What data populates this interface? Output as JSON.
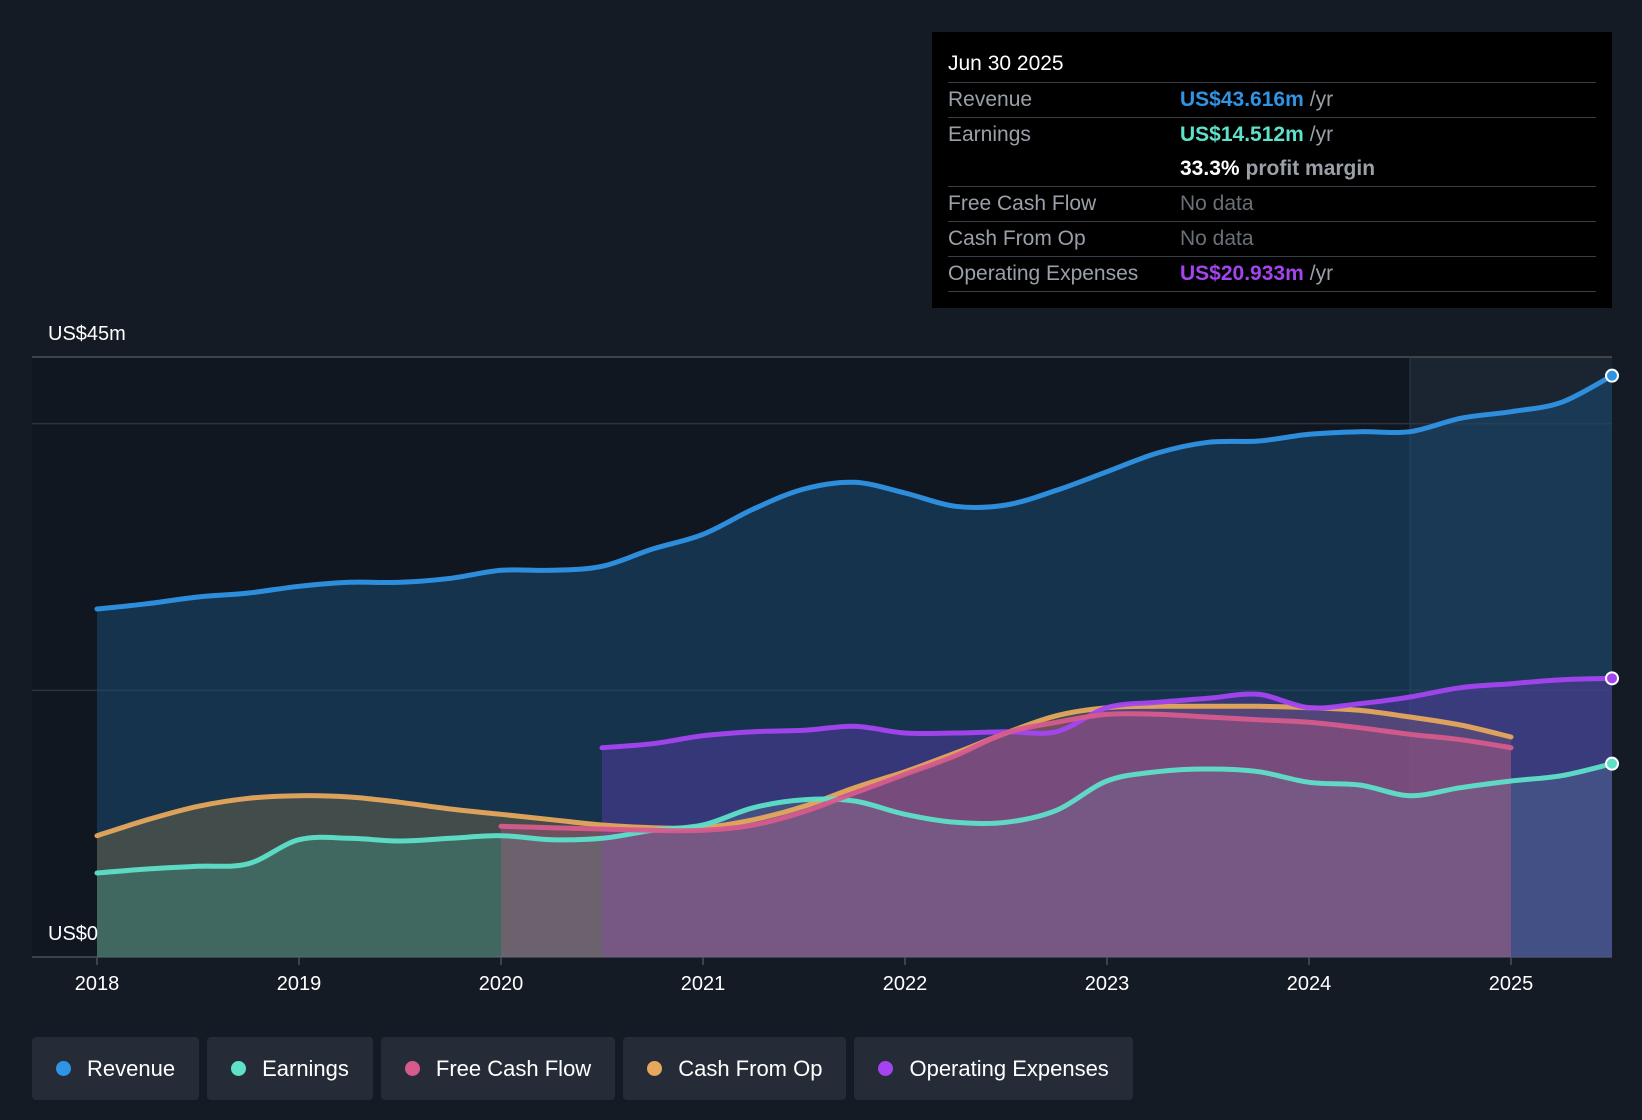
{
  "tooltip": {
    "date": "Jun 30 2025",
    "revenue": {
      "label": "Revenue",
      "value": "US$43.616m",
      "unit": "/yr"
    },
    "earnings": {
      "label": "Earnings",
      "value": "US$14.512m",
      "unit": "/yr"
    },
    "margin": {
      "value": "33.3%",
      "label": "profit margin"
    },
    "fcf": {
      "label": "Free Cash Flow",
      "value": "No data"
    },
    "cfo": {
      "label": "Cash From Op",
      "value": "No data"
    },
    "opex": {
      "label": "Operating Expenses",
      "value": "US$20.933m",
      "unit": "/yr"
    }
  },
  "colors": {
    "revenue": "#2f94e6",
    "earnings": "#5ee0c9",
    "fcf": "#d65b8d",
    "cfo": "#e6a85c",
    "opex": "#a444f0"
  },
  "legend": [
    {
      "key": "revenue",
      "label": "Revenue"
    },
    {
      "key": "earnings",
      "label": "Earnings"
    },
    {
      "key": "fcf",
      "label": "Free Cash Flow"
    },
    {
      "key": "cfo",
      "label": "Cash From Op"
    },
    {
      "key": "opex",
      "label": "Operating Expenses"
    }
  ],
  "chart_data": {
    "type": "area",
    "title": "",
    "xlabel": "",
    "ylabel": "",
    "y_max_label": "US$45m",
    "y_min_label": "US$0",
    "ylim": [
      0,
      45
    ],
    "xlim": [
      2017.68,
      2025.5
    ],
    "x_ticks": [
      2018,
      2019,
      2020,
      2021,
      2022,
      2023,
      2024,
      2025
    ],
    "x_tick_labels": [
      "2018",
      "2019",
      "2020",
      "2021",
      "2022",
      "2023",
      "2024",
      "2025"
    ],
    "gridlines": [
      20,
      40
    ],
    "highlight_from": 2024.5,
    "series": [
      {
        "key": "revenue",
        "name": "Revenue",
        "x": [
          2018,
          2018.25,
          2018.5,
          2018.75,
          2019,
          2019.25,
          2019.5,
          2019.75,
          2020,
          2020.25,
          2020.5,
          2020.75,
          2021,
          2021.25,
          2021.5,
          2021.75,
          2022,
          2022.25,
          2022.5,
          2022.75,
          2023,
          2023.25,
          2023.5,
          2023.75,
          2024,
          2024.25,
          2024.5,
          2024.75,
          2025,
          2025.25,
          2025.5
        ],
        "y": [
          26.1,
          26.5,
          27.0,
          27.3,
          27.8,
          28.1,
          28.1,
          28.4,
          29.0,
          29.0,
          29.3,
          30.6,
          31.7,
          33.6,
          35.1,
          35.6,
          34.8,
          33.8,
          33.9,
          35.0,
          36.4,
          37.8,
          38.6,
          38.7,
          39.2,
          39.4,
          39.4,
          40.4,
          40.9,
          41.6,
          43.6
        ]
      },
      {
        "key": "earnings",
        "name": "Earnings",
        "x": [
          2018,
          2018.25,
          2018.5,
          2018.75,
          2019,
          2019.25,
          2019.5,
          2019.75,
          2020,
          2020.25,
          2020.5,
          2020.75,
          2021,
          2021.25,
          2021.5,
          2021.75,
          2022,
          2022.25,
          2022.5,
          2022.75,
          2023,
          2023.25,
          2023.5,
          2023.75,
          2024,
          2024.25,
          2024.5,
          2024.75,
          2025,
          2025.25,
          2025.5
        ],
        "y": [
          6.3,
          6.6,
          6.8,
          7.0,
          8.8,
          8.9,
          8.7,
          8.9,
          9.1,
          8.8,
          8.9,
          9.5,
          9.9,
          11.2,
          11.8,
          11.7,
          10.7,
          10.1,
          10.1,
          11.0,
          13.2,
          13.9,
          14.1,
          13.9,
          13.1,
          12.9,
          12.1,
          12.7,
          13.2,
          13.6,
          14.5
        ]
      },
      {
        "key": "fcf",
        "name": "Free Cash Flow",
        "x": [
          2020,
          2020.25,
          2020.5,
          2020.75,
          2021,
          2021.25,
          2021.5,
          2021.75,
          2022,
          2022.25,
          2022.5,
          2022.75,
          2023,
          2023.25,
          2023.5,
          2023.75,
          2024,
          2024.25,
          2024.5,
          2024.75,
          2025
        ],
        "y": [
          9.8,
          9.7,
          9.6,
          9.5,
          9.5,
          9.9,
          10.9,
          12.3,
          13.7,
          15.1,
          16.8,
          17.6,
          18.2,
          18.2,
          18.0,
          17.8,
          17.6,
          17.2,
          16.7,
          16.3,
          15.7
        ]
      },
      {
        "key": "cfo",
        "name": "Cash From Op",
        "x": [
          2018,
          2018.25,
          2018.5,
          2018.75,
          2019,
          2019.25,
          2019.5,
          2019.75,
          2020,
          2020.25,
          2020.5,
          2020.75,
          2021,
          2021.25,
          2021.5,
          2021.75,
          2022,
          2022.25,
          2022.5,
          2022.75,
          2023,
          2023.25,
          2023.5,
          2023.75,
          2024,
          2024.25,
          2024.5,
          2024.75,
          2025
        ],
        "y": [
          9.1,
          10.3,
          11.3,
          11.9,
          12.1,
          12.0,
          11.6,
          11.1,
          10.7,
          10.3,
          9.9,
          9.7,
          9.7,
          10.3,
          11.3,
          12.7,
          13.9,
          15.3,
          16.8,
          18.1,
          18.7,
          18.8,
          18.8,
          18.8,
          18.7,
          18.5,
          18.0,
          17.4,
          16.5
        ]
      },
      {
        "key": "opex",
        "name": "Operating Expenses",
        "x": [
          2020.5,
          2020.75,
          2021,
          2021.25,
          2021.5,
          2021.75,
          2022,
          2022.25,
          2022.5,
          2022.75,
          2023,
          2023.25,
          2023.5,
          2023.75,
          2024,
          2024.25,
          2024.5,
          2024.75,
          2025,
          2025.25,
          2025.5
        ],
        "y": [
          15.7,
          16.0,
          16.6,
          16.9,
          17.0,
          17.3,
          16.8,
          16.8,
          16.9,
          16.9,
          18.7,
          19.1,
          19.4,
          19.7,
          18.7,
          19.0,
          19.5,
          20.2,
          20.5,
          20.8,
          20.9
        ]
      }
    ]
  }
}
